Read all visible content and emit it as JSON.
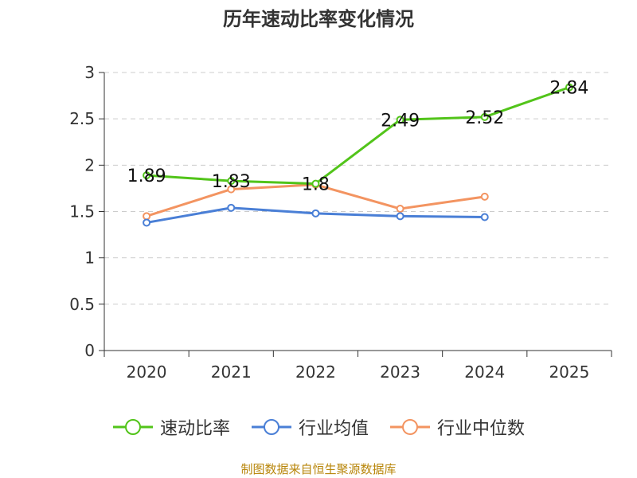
{
  "chart_data": {
    "type": "line",
    "title": "历年速动比率变化情况",
    "categories": [
      "2020",
      "2021",
      "2022",
      "2023",
      "2024",
      "2025"
    ],
    "ylim": [
      0,
      3
    ],
    "yticks": [
      0,
      0.5,
      1,
      1.5,
      2,
      2.5,
      3
    ],
    "ytick_labels": [
      "0",
      "0.5",
      "1",
      "1.5",
      "2",
      "2.5",
      "3"
    ],
    "grid": true,
    "legend_position": "bottom",
    "series": [
      {
        "name": "速动比率",
        "color": "#52c41a",
        "values": [
          1.89,
          1.83,
          1.8,
          2.49,
          2.52,
          2.84
        ],
        "labels": [
          "1.89",
          "1.83",
          "1.8",
          "2.49",
          "2.52",
          "2.84"
        ]
      },
      {
        "name": "行业均值",
        "color": "#4a7fd6",
        "values": [
          1.38,
          1.54,
          1.48,
          1.45,
          1.44,
          null
        ]
      },
      {
        "name": "行业中位数",
        "color": "#f39461",
        "values": [
          1.45,
          1.74,
          1.79,
          1.53,
          1.66,
          null
        ]
      }
    ]
  },
  "footer": {
    "source": "制图数据来自恒生聚源数据库"
  }
}
